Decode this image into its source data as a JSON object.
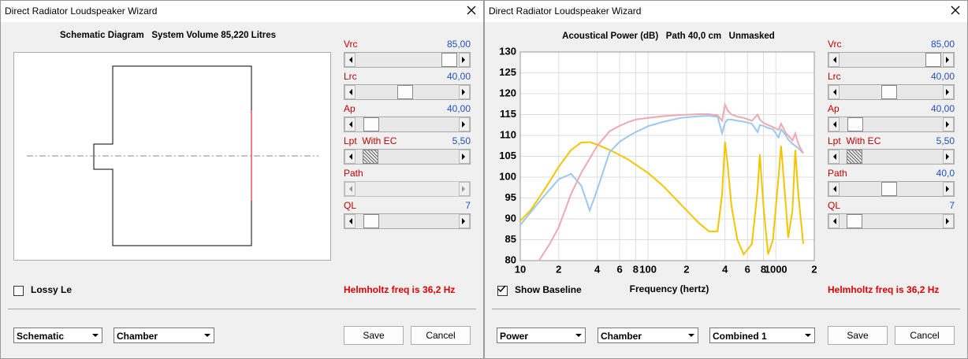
{
  "windows": [
    {
      "title": "Direct Radiator Loudspeaker Wizard",
      "heading": "Schematic Diagram   System Volume 85,220 Litres",
      "sliders": [
        {
          "label": "Vrc",
          "value": "85,00"
        },
        {
          "label": "Lrc",
          "value": "40,00"
        },
        {
          "label": "Ap",
          "value": "40,00"
        },
        {
          "label": "Lpt  With EC",
          "value": "5,50"
        },
        {
          "label": "Path"
        },
        {
          "label": "QL",
          "value": "7"
        }
      ],
      "checkbox": "Lossy Le",
      "status": "Helmholtz freq is 36,2 Hz",
      "dropdowns": [
        "Schematic",
        "Chamber"
      ],
      "buttons": [
        "Save",
        "Cancel"
      ]
    },
    {
      "title": "Direct Radiator Loudspeaker Wizard",
      "sliders": [
        {
          "label": "Vrc",
          "value": "85,00"
        },
        {
          "label": "Lrc",
          "value": "40,00"
        },
        {
          "label": "Ap",
          "value": "40,00"
        },
        {
          "label": "Lpt  With EC",
          "value": "5,50"
        },
        {
          "label": "Path",
          "value": "40,0"
        },
        {
          "label": "QL",
          "value": "7"
        }
      ],
      "checkbox": "Show Baseline",
      "status": "Helmholtz freq is 36,2 Hz",
      "dropdowns": [
        "Power",
        "Chamber",
        "Combined 1"
      ],
      "buttons": [
        "Save",
        "Cancel"
      ]
    }
  ],
  "chart_data": {
    "type": "line",
    "title": "Acoustical Power (dB)   Path 40,0 cm   Unmasked",
    "x_label": "Frequency (hertz)",
    "x_scale": "log",
    "grid": true,
    "xlim": [
      10,
      2000
    ],
    "ylim": [
      80,
      130
    ],
    "yticks": [
      80,
      85,
      90,
      95,
      100,
      105,
      110,
      115,
      120,
      125,
      130
    ],
    "xticks": [
      10,
      {
        "value": 20,
        "label": "2"
      },
      {
        "value": 40,
        "label": "4"
      },
      {
        "value": 60,
        "label": "6"
      },
      {
        "value": 80,
        "label": "8"
      },
      100,
      {
        "value": 200,
        "label": "2"
      },
      {
        "value": 400,
        "label": "4"
      },
      {
        "value": 600,
        "label": "6"
      },
      {
        "value": 800,
        "label": "8"
      },
      1000,
      {
        "value": 2000,
        "label": "2"
      }
    ],
    "x": [
      10,
      12,
      14,
      17,
      20,
      25,
      30,
      35,
      40,
      50,
      60,
      70,
      80,
      100,
      130,
      180,
      250,
      300,
      350,
      380,
      400,
      420,
      450,
      500,
      560,
      650,
      720,
      750,
      800,
      870,
      950,
      1050,
      1100,
      1200,
      1250,
      1350,
      1420,
      1500,
      1640
    ],
    "series": [
      {
        "color": "#f5c400",
        "values": [
          89.5,
          92,
          95,
          99,
          102.5,
          106.5,
          108.3,
          108.4,
          107.8,
          106.5,
          105.3,
          104.2,
          103,
          101,
          98,
          93.5,
          89,
          87,
          87,
          96,
          108.5,
          103,
          93,
          85,
          81.5,
          84,
          97,
          105.5,
          93,
          81.5,
          85,
          100,
          107.5,
          93,
          85.5,
          92,
          106.5,
          96,
          84
        ]
      },
      {
        "color": "#9cc8f0",
        "values": [
          88.5,
          91.5,
          94,
          97,
          99.5,
          100.8,
          98,
          92,
          97,
          106,
          108.5,
          109.8,
          110.8,
          112.2,
          113.2,
          114.2,
          114.6,
          114.7,
          114.5,
          110.5,
          113,
          113.8,
          113.8,
          113.5,
          113.3,
          112.8,
          110.8,
          112.5,
          112.3,
          111.8,
          111.5,
          109.5,
          111.5,
          110,
          109,
          108,
          107.5,
          107,
          105.7
        ]
      },
      {
        "color": "#f0a8b0",
        "values": [
          null,
          null,
          80,
          84,
          88,
          96,
          101,
          104.5,
          107.5,
          111,
          112.3,
          113.2,
          113.8,
          114.2,
          114.6,
          114.9,
          115.1,
          115.1,
          114.8,
          113.5,
          117.4,
          116,
          115,
          114.5,
          114.2,
          113.5,
          115,
          113.8,
          113,
          112.5,
          112,
          111.3,
          112.8,
          110.5,
          110,
          108.8,
          110.5,
          108,
          105.7
        ]
      }
    ]
  }
}
